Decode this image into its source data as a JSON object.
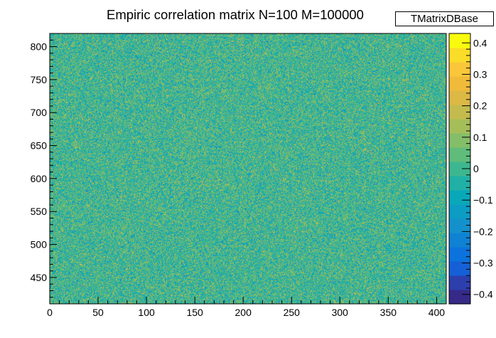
{
  "chart_data": {
    "type": "heatmap",
    "title": "Empiric correlation matrix N=100 M=100000",
    "stat_box": "TMatrixDBase",
    "xlabel": "",
    "ylabel": "",
    "xlim": [
      0,
      410
    ],
    "ylim": [
      410,
      820
    ],
    "xticks": [
      0,
      50,
      100,
      150,
      200,
      250,
      300,
      350,
      400
    ],
    "yticks": [
      450,
      500,
      550,
      600,
      650,
      700,
      750,
      800
    ],
    "zlim": [
      -0.43,
      0.43
    ],
    "zticks": [
      0.4,
      0.3,
      0.2,
      0.1,
      0,
      -0.1,
      -0.2,
      -0.3,
      -0.4
    ],
    "zticklabels": [
      "0.4",
      "0.3",
      "0.2",
      "0.1",
      "0",
      "−0.1",
      "−0.2",
      "−0.3",
      "−0.4"
    ],
    "color_palette": [
      "#352a87",
      "#2d3fad",
      "#1560d6",
      "#0c72dc",
      "#0f82d3",
      "#1491cc",
      "#0d9cc4",
      "#09a8b8",
      "#20b0a5",
      "#3db78f",
      "#5fbc7a",
      "#84be68",
      "#a6be5a",
      "#c3bb4e",
      "#dcb944",
      "#f0bb3a",
      "#fac73a",
      "#f9dd28",
      "#f9fb0e"
    ],
    "grid": false,
    "legend": "none",
    "noise_distribution": "gaussian, mean 0, sd 0.095"
  }
}
